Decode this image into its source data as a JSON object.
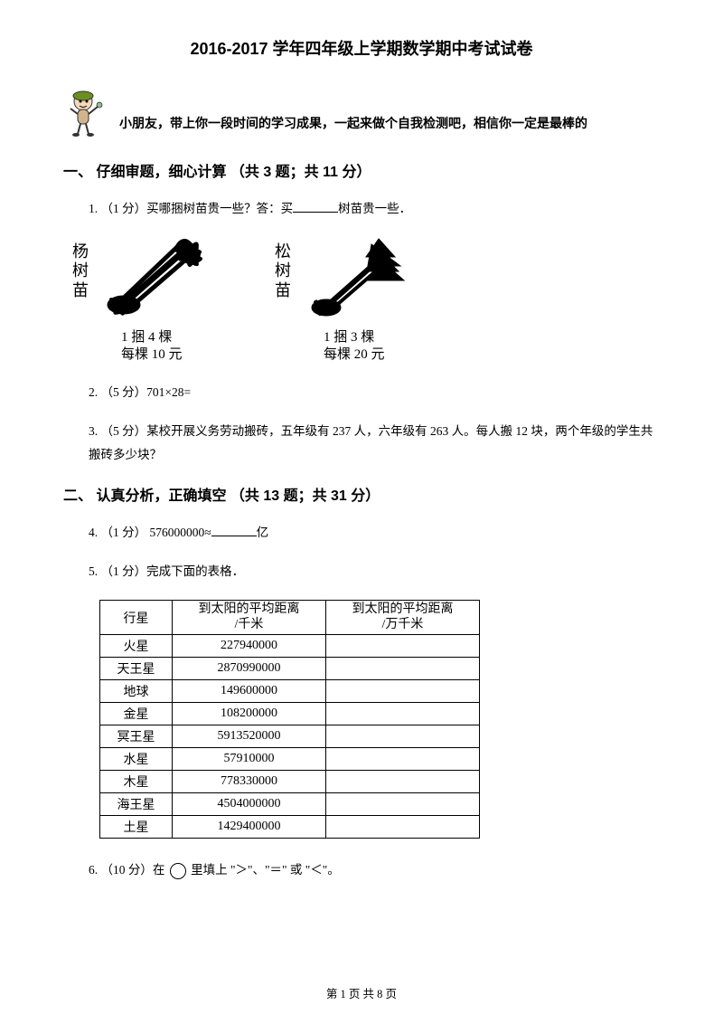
{
  "title": "2016-2017 学年四年级上学期数学期中考试试卷",
  "intro": "小朋友，带上你一段时间的学习成果，一起来做个自我检测吧，相信你一定是最棒的",
  "section1": {
    "header": "一、 仔细审题，细心计算 （共 3 题；共 11 分）",
    "q1": {
      "prefix": "1.  （1 分）买哪捆树苗贵一些？答：买",
      "suffix": "树苗贵一些．"
    },
    "sapling1": {
      "name": "杨树苗",
      "line1": "1 捆 4 棵",
      "line2": "每棵 10 元"
    },
    "sapling2": {
      "name": "松树苗",
      "line1": "1 捆 3 棵",
      "line2": "每棵 20 元"
    },
    "q2": "2.  （5 分）701×28=",
    "q3": "3.  （5 分）某校开展义务劳动搬砖，五年级有 237 人，六年级有 263 人。每人搬 12 块，两个年级的学生共搬砖多少块？"
  },
  "section2": {
    "header": "二、 认真分析，正确填空 （共 13 题；共 31 分）",
    "q4": {
      "prefix": "4.  （1 分）  576000000≈",
      "suffix": "亿"
    },
    "q5": "5.  （1 分）完成下面的表格．",
    "table": {
      "headers": [
        "行星",
        "到太阳的平均距离/千米",
        "到太阳的平均距离/万千米"
      ],
      "rows": [
        [
          "火星",
          "227940000",
          ""
        ],
        [
          "天王星",
          "2870990000",
          ""
        ],
        [
          "地球",
          "149600000",
          ""
        ],
        [
          "金星",
          "108200000",
          ""
        ],
        [
          "冥王星",
          "5913520000",
          ""
        ],
        [
          "水星",
          "57910000",
          ""
        ],
        [
          "木星",
          "778330000",
          ""
        ],
        [
          "海王星",
          "4504000000",
          ""
        ],
        [
          "土星",
          "1429400000",
          ""
        ]
      ]
    },
    "q6": {
      "prefix": "6.  （10 分）在 ",
      "suffix": " 里填上 \"＞\"、\"＝\" 或 \"＜\"。"
    }
  },
  "footer": "第 1 页 共 8 页"
}
